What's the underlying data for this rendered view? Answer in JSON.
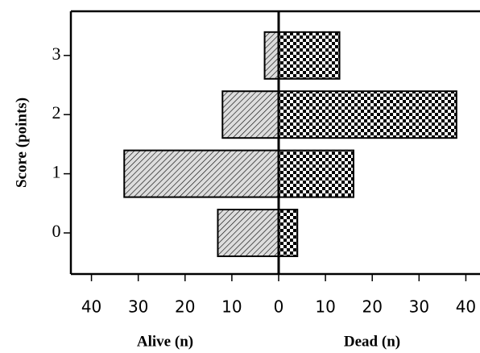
{
  "chart_data": {
    "type": "diverging-bar",
    "y_label": "Score (points)",
    "categories": [
      "0",
      "1",
      "2",
      "3"
    ],
    "series": [
      {
        "name": "Alive (n)",
        "side": "left",
        "pattern": "hatch",
        "color": "#000000",
        "values": [
          13,
          33,
          12,
          3
        ]
      },
      {
        "name": "Dead (n)",
        "side": "right",
        "pattern": "checker",
        "color": "#000000",
        "values": [
          4,
          16,
          38,
          13
        ]
      }
    ],
    "xlim": [
      -44.4,
      44.4
    ],
    "xticks": [
      {
        "value": -40,
        "label": "40"
      },
      {
        "value": -30,
        "label": "30"
      },
      {
        "value": -20,
        "label": "20"
      },
      {
        "value": -10,
        "label": "10"
      },
      0,
      10,
      20,
      30,
      40
    ]
  }
}
